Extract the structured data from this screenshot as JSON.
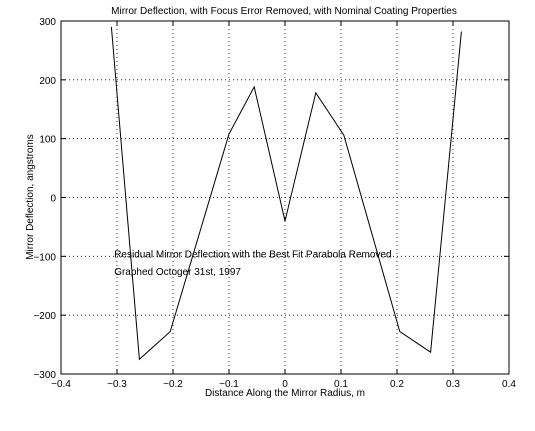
{
  "chart_data": {
    "type": "line",
    "title": "Mirror Deflection, with Focus Error Removed, with Nominal Coating Properties",
    "xlabel": "Distance Along the Mirror Radius, m",
    "ylabel": "Mirror Deflection, angstroms",
    "xlim": [
      -0.4,
      0.4
    ],
    "ylim": [
      -300,
      300
    ],
    "xticks": [
      -0.4,
      -0.3,
      -0.2,
      -0.1,
      0,
      0.1,
      0.2,
      0.3,
      0.4
    ],
    "xtick_labels": [
      "−0.4",
      "−0.3",
      "−0.2",
      "−0.1",
      "0",
      "0.1",
      "0.2",
      "0.3",
      "0.4"
    ],
    "yticks": [
      -300,
      -200,
      -100,
      0,
      100,
      200,
      300
    ],
    "ytick_labels": [
      "−300",
      "−200",
      "−100",
      "0",
      "100",
      "200",
      "300"
    ],
    "grid": true,
    "annotations": [
      {
        "text": "Residual Mirror Deflection with the Best Fit Parabola Removed",
        "x": -0.305,
        "y": -95
      },
      {
        "text": "Graphed Octoger 31st, 1997",
        "x": -0.305,
        "y": -125
      }
    ],
    "series": [
      {
        "x": [
          -0.31,
          -0.26,
          -0.205,
          -0.1,
          -0.055,
          0,
          0.055,
          0.105,
          0.205,
          0.26,
          0.315
        ],
        "y": [
          290,
          -275,
          -228,
          108,
          188,
          -40,
          178,
          106,
          -228,
          -263,
          282
        ]
      }
    ]
  }
}
